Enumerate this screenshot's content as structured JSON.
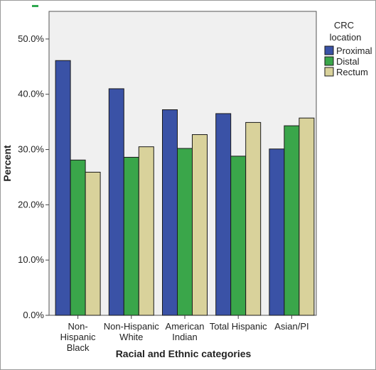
{
  "chart_data": {
    "type": "bar",
    "xlabel": "Racial and Ethnic categories",
    "ylabel": "Percent",
    "ylim": [
      0,
      55
    ],
    "yticks": [
      0,
      10,
      20,
      30,
      40,
      50
    ],
    "ytick_labels": [
      "0.0%",
      "10.0%",
      "20.0%",
      "30.0%",
      "40.0%",
      "50.0%"
    ],
    "grid": false,
    "legend_position": "top-right",
    "legend_title": "CRC location",
    "categories": [
      "Non-Hispanic Black",
      "Non-Hispanic White",
      "American Indian",
      "Total Hispanic",
      "Asian/PI"
    ],
    "category_label_lines": [
      [
        "Non-",
        "Hispanic",
        "Black"
      ],
      [
        "Non-Hispanic",
        "White"
      ],
      [
        "American",
        "Indian"
      ],
      [
        "Total Hispanic"
      ],
      [
        "Asian/PI"
      ]
    ],
    "series": [
      {
        "name": "Proximal",
        "color": "#3a52a6",
        "values": [
          46.1,
          41.0,
          37.2,
          36.5,
          30.1
        ]
      },
      {
        "name": "Distal",
        "color": "#3aa64a",
        "values": [
          28.1,
          28.6,
          30.2,
          28.8,
          34.3
        ]
      },
      {
        "name": "Rectum",
        "color": "#d9d29b",
        "values": [
          25.9,
          30.5,
          32.7,
          34.9,
          35.7
        ]
      }
    ],
    "colors": {
      "plot_background": "#f0f0f0",
      "bar_stroke": "#1a1a1a",
      "marker": "#2fa84f"
    }
  }
}
